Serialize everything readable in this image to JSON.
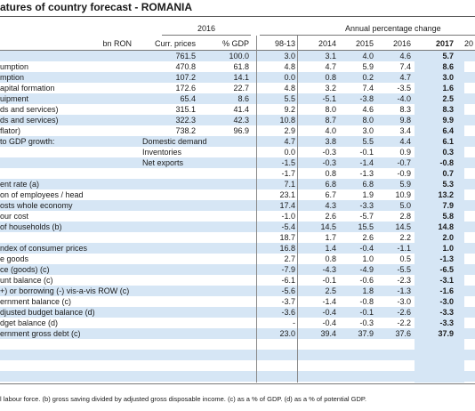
{
  "title": "atures of country forecast - ROMANIA",
  "header": {
    "year_2016": "2016",
    "annual_change": "Annual percentage change",
    "cols": [
      "bn RON",
      "Curr. prices",
      "% GDP",
      "98-13",
      "2014",
      "2015",
      "2016",
      "2017",
      "20"
    ]
  },
  "rows": [
    {
      "label": "",
      "sub": "",
      "v": [
        "761.5",
        "100.0",
        "3.0",
        "3.1",
        "4.0",
        "4.6",
        "5.7"
      ]
    },
    {
      "label": "umption",
      "sub": "",
      "v": [
        "470.8",
        "61.8",
        "4.8",
        "4.7",
        "5.9",
        "7.4",
        "8.6"
      ]
    },
    {
      "label": "mption",
      "sub": "",
      "v": [
        "107.2",
        "14.1",
        "0.0",
        "0.8",
        "0.2",
        "4.7",
        "3.0"
      ]
    },
    {
      "label": "apital formation",
      "sub": "",
      "v": [
        "172.6",
        "22.7",
        "4.8",
        "3.2",
        "7.4",
        "-3.5",
        "1.6"
      ]
    },
    {
      "label": "uipment",
      "sub": "",
      "v": [
        "65.4",
        "8.6",
        "5.5",
        "-5.1",
        "-3.8",
        "-4.0",
        "2.5"
      ]
    },
    {
      "label": "ds and services)",
      "sub": "",
      "v": [
        "315.1",
        "41.4",
        "9.2",
        "8.0",
        "4.6",
        "8.3",
        "8.3"
      ]
    },
    {
      "label": "ds and services)",
      "sub": "",
      "v": [
        "322.3",
        "42.3",
        "10.8",
        "8.7",
        "8.0",
        "9.8",
        "9.9"
      ]
    },
    {
      "label": "flator)",
      "sub": "",
      "v": [
        "738.2",
        "96.9",
        "2.9",
        "4.0",
        "3.0",
        "3.4",
        "6.4"
      ]
    },
    {
      "label": "to GDP growth:",
      "sub": "Domestic demand",
      "v": [
        "",
        "",
        "4.7",
        "3.8",
        "5.5",
        "4.4",
        "6.1"
      ]
    },
    {
      "label": "",
      "sub": "Inventories",
      "v": [
        "",
        "",
        "0.0",
        "-0.3",
        "-0.1",
        "0.9",
        "0.3"
      ]
    },
    {
      "label": "",
      "sub": "Net exports",
      "v": [
        "",
        "",
        "-1.5",
        "-0.3",
        "-1.4",
        "-0.7",
        "-0.8"
      ]
    },
    {
      "label": "",
      "sub": "",
      "v": [
        "",
        "",
        "-1.7",
        "0.8",
        "-1.3",
        "-0.9",
        "0.7"
      ]
    },
    {
      "label": "ent rate (a)",
      "sub": "",
      "v": [
        "",
        "",
        "7.1",
        "6.8",
        "6.8",
        "5.9",
        "5.3"
      ]
    },
    {
      "label": "on of employees / head",
      "sub": "",
      "v": [
        "",
        "",
        "23.1",
        "6.7",
        "1.9",
        "10.9",
        "13.2"
      ]
    },
    {
      "label": "osts whole economy",
      "sub": "",
      "v": [
        "",
        "",
        "17.4",
        "4.3",
        "-3.3",
        "5.0",
        "7.9"
      ]
    },
    {
      "label": "our cost",
      "sub": "",
      "v": [
        "",
        "",
        "-1.0",
        "2.6",
        "-5.7",
        "2.8",
        "5.8"
      ]
    },
    {
      "label": "of households (b)",
      "sub": "",
      "v": [
        "",
        "",
        "-5.4",
        "14.5",
        "15.5",
        "14.5",
        "14.8"
      ]
    },
    {
      "label": "",
      "sub": "",
      "v": [
        "",
        "",
        "18.7",
        "1.7",
        "2.6",
        "2.2",
        "2.0"
      ]
    },
    {
      "label": "ndex of consumer prices",
      "sub": "",
      "v": [
        "",
        "",
        "16.8",
        "1.4",
        "-0.4",
        "-1.1",
        "1.0"
      ]
    },
    {
      "label": "e goods",
      "sub": "",
      "v": [
        "",
        "",
        "2.7",
        "0.8",
        "1.0",
        "0.5",
        "-1.3"
      ]
    },
    {
      "label": "ce (goods) (c)",
      "sub": "",
      "v": [
        "",
        "",
        "-7.9",
        "-4.3",
        "-4.9",
        "-5.5",
        "-6.5"
      ]
    },
    {
      "label": "unt balance (c)",
      "sub": "",
      "v": [
        "",
        "",
        "-6.1",
        "-0.1",
        "-0.6",
        "-2.3",
        "-3.1"
      ]
    },
    {
      "label": "+) or borrowing (-) vis-a-vis ROW (c)",
      "sub": "",
      "v": [
        "",
        "",
        "-5.6",
        "2.5",
        "1.8",
        "-1.3",
        "-1.6"
      ]
    },
    {
      "label": "ernment balance (c)",
      "sub": "",
      "v": [
        "",
        "",
        "-3.7",
        "-1.4",
        "-0.8",
        "-3.0",
        "-3.0"
      ]
    },
    {
      "label": "djusted budget balance (d)",
      "sub": "",
      "v": [
        "",
        "",
        "-3.6",
        "-0.4",
        "-0.1",
        "-2.6",
        "-3.3"
      ]
    },
    {
      "label": "dget balance (d)",
      "sub": "",
      "v": [
        "",
        "",
        "-",
        "-0.4",
        "-0.3",
        "-2.2",
        "-3.3"
      ]
    },
    {
      "label": "ernment gross debt (c)",
      "sub": "",
      "v": [
        "",
        "",
        "23.0",
        "39.4",
        "37.9",
        "37.6",
        "37.9"
      ]
    }
  ],
  "footnote": "l labour force. (b) gross saving divided by adjusted gross disposable income.  (c) as a % of  GDP. (d) as a % of  potential GDP."
}
